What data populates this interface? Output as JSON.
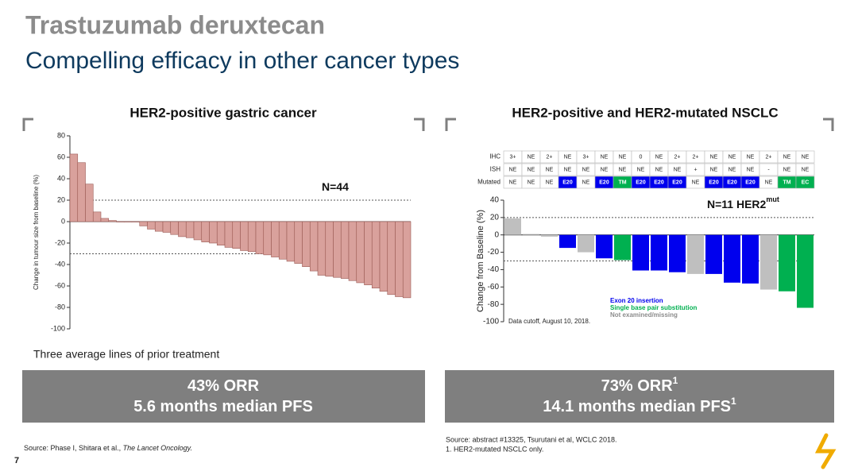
{
  "slide": {
    "title": "Trastuzumab deruxtecan",
    "subtitle": "Compelling efficacy in other cancer types",
    "page": "7"
  },
  "chart_data": [
    {
      "type": "bar",
      "title": "HER2-positive gastric cancer",
      "y_label": "Change in tumour size from baseline (%)",
      "ylim": [
        -100,
        80
      ],
      "yticks": [
        -100,
        -80,
        -60,
        -40,
        -20,
        0,
        20,
        40,
        60,
        80
      ],
      "values": [
        63,
        55,
        35,
        9,
        3,
        1,
        0,
        0,
        0,
        -4,
        -7,
        -9,
        -10,
        -12,
        -14,
        -15,
        -17,
        -19,
        -20,
        -22,
        -24,
        -25,
        -27,
        -28,
        -30,
        -31,
        -33,
        -35,
        -37,
        -39,
        -42,
        -46,
        -50,
        -51,
        -52,
        -53,
        -55,
        -57,
        -59,
        -62,
        -65,
        -68,
        -70,
        -71
      ],
      "color": "#d9a19c",
      "ref_lines": [
        20,
        -30
      ],
      "annotation": {
        "text": "N=44"
      },
      "note": "Three average lines of prior treatment",
      "summary": [
        {
          "text": "43% ORR"
        },
        {
          "text": "5.6 months median PFS"
        }
      ]
    },
    {
      "type": "bar",
      "title": "HER2-positive and HER2-mutated NSCLC",
      "y_label": "Change from Baseline (%)",
      "ylim": [
        -100,
        40
      ],
      "yticks": [
        -100,
        -80,
        -60,
        -40,
        -20,
        0,
        20,
        40
      ],
      "values": [
        19,
        1,
        -2,
        -15,
        -20,
        -27,
        -29,
        -41,
        -41,
        -43,
        -45,
        -45,
        -55,
        -56,
        -63,
        -65,
        -84
      ],
      "colors": [
        "#bfbfbf",
        "#bfbfbf",
        "#bfbfbf",
        "#0000ee",
        "#bfbfbf",
        "#0000ee",
        "#00b050",
        "#0000ee",
        "#0000ee",
        "#0000ee",
        "#bfbfbf",
        "#0000ee",
        "#0000ee",
        "#0000ee",
        "#bfbfbf",
        "#00b050",
        "#00b050"
      ],
      "ref_lines": [
        20,
        -30
      ],
      "annotation": {
        "text": "N=11 HER2",
        "sup": "mut"
      },
      "note": "Data cutoff, August 10, 2018.",
      "legend": [
        {
          "name": "Exon 20 insertion",
          "color": "#0000ee"
        },
        {
          "name": "Single base pair substitution",
          "color": "#00b050"
        },
        {
          "name": "Not examined/missing",
          "color": "#8c8c8c"
        }
      ],
      "table": {
        "row_labels": [
          "IHC",
          "ISH",
          "Mutated"
        ],
        "rows": [
          [
            "3+",
            "NE",
            "2+",
            "NE",
            "3+",
            "NE",
            "NE",
            "0",
            "NE",
            "2+",
            "2+",
            "NE",
            "NE",
            "NE",
            "2+",
            "NE",
            "NE"
          ],
          [
            "NE",
            "NE",
            "NE",
            "NE",
            "NE",
            "NE",
            "NE",
            "NE",
            "NE",
            "NE",
            "+",
            "NE",
            "NE",
            "NE",
            "-",
            "NE",
            "NE"
          ],
          [
            "NE",
            "NE",
            "NE",
            "E20",
            "NE",
            "E20",
            "TM",
            "E20",
            "E20",
            "E20",
            "NE",
            "E20",
            "E20",
            "E20",
            "NE",
            "TM",
            "EC"
          ]
        ],
        "fills": [
          null,
          null,
          [
            null,
            null,
            null,
            "#0000ee",
            null,
            "#0000ee",
            "#00b050",
            "#0000ee",
            "#0000ee",
            "#0000ee",
            null,
            "#0000ee",
            "#0000ee",
            "#0000ee",
            null,
            "#00b050",
            "#00b050"
          ]
        ]
      },
      "summary": [
        {
          "text": "73% ORR",
          "sup": "1"
        },
        {
          "text": "14.1 months median PFS",
          "sup": "1"
        }
      ]
    }
  ],
  "footnotes": {
    "left": {
      "text": "Source: Phase I, Shitara et al., ",
      "journal": "The Lancet Oncology."
    },
    "right": [
      "Source: abstract #13325, Tsurutani et al, WCLC 2018.",
      "1. HER2-mutated NSCLC only."
    ]
  }
}
